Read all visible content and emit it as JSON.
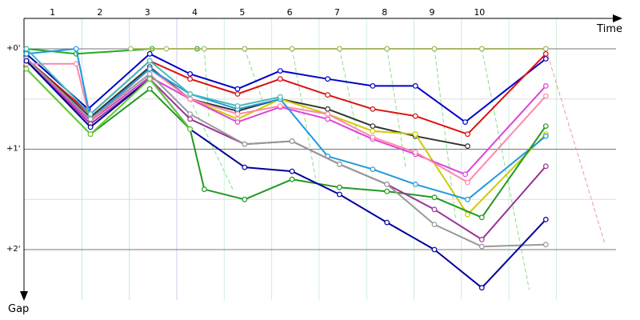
{
  "chart_data": {
    "type": "line",
    "title": "",
    "xlabel": "Time",
    "ylabel": "Gap",
    "lap_labels": [
      "1",
      "2",
      "3",
      "4",
      "5",
      "6",
      "7",
      "8",
      "9",
      "10"
    ],
    "y_tick_labels": [
      "+0'",
      "+1'",
      "+2'"
    ],
    "ylim": [
      -0.2,
      2.5
    ],
    "grid": true,
    "series": [
      {
        "color": "#22aa22",
        "values": [
          [
            0,
            0.0
          ],
          [
            1.05,
            0.05
          ],
          [
            2.65,
            0.0
          ],
          [
            3.6,
            0.0
          ],
          [
            4.6,
            0.0
          ],
          [
            5.6,
            0.0
          ],
          [
            6.6,
            0.0
          ],
          [
            7.6,
            0.0
          ],
          [
            8.6,
            0.0
          ],
          [
            9.6,
            0.0
          ],
          [
            10.95,
            0.0
          ]
        ]
      },
      {
        "color": "#aab866",
        "values": [
          [
            2.2,
            0.0
          ],
          [
            2.95,
            0.0
          ],
          [
            3.75,
            0.0
          ],
          [
            4.6,
            0.0
          ],
          [
            5.6,
            0.0
          ],
          [
            6.6,
            0.0
          ],
          [
            7.6,
            0.0
          ],
          [
            8.6,
            0.0
          ],
          [
            9.6,
            0.0
          ],
          [
            10.95,
            0.0
          ]
        ]
      },
      {
        "color": "#0000cc",
        "values": [
          [
            0,
            0.05
          ],
          [
            1.3,
            0.6
          ],
          [
            2.6,
            0.05
          ],
          [
            3.45,
            0.25
          ],
          [
            4.45,
            0.4
          ],
          [
            5.35,
            0.22
          ],
          [
            6.35,
            0.3
          ],
          [
            7.3,
            0.37
          ],
          [
            8.2,
            0.37
          ],
          [
            9.25,
            0.73
          ],
          [
            10.95,
            0.1
          ]
        ]
      },
      {
        "color": "#dd1111",
        "values": [
          [
            0,
            0.1
          ],
          [
            1.35,
            0.65
          ],
          [
            2.6,
            0.12
          ],
          [
            3.45,
            0.3
          ],
          [
            4.45,
            0.45
          ],
          [
            5.35,
            0.3
          ],
          [
            6.35,
            0.46
          ],
          [
            7.3,
            0.6
          ],
          [
            8.2,
            0.67
          ],
          [
            9.3,
            0.85
          ],
          [
            10.95,
            0.05
          ]
        ]
      },
      {
        "color": "#333333",
        "values": [
          [
            0,
            0.1
          ],
          [
            1.35,
            0.68
          ],
          [
            2.6,
            0.18
          ],
          [
            3.45,
            0.5
          ],
          [
            4.45,
            0.62
          ],
          [
            5.35,
            0.5
          ],
          [
            6.35,
            0.6
          ],
          [
            7.3,
            0.77
          ],
          [
            8.2,
            0.87
          ],
          [
            9.3,
            0.97
          ]
        ]
      },
      {
        "color": "#cccc00",
        "values": [
          [
            0,
            0.12
          ],
          [
            1.35,
            0.72
          ],
          [
            2.6,
            0.28
          ],
          [
            3.45,
            0.5
          ],
          [
            4.45,
            0.7
          ],
          [
            5.35,
            0.5
          ],
          [
            6.35,
            0.65
          ],
          [
            7.3,
            0.82
          ],
          [
            8.2,
            0.85
          ],
          [
            9.3,
            1.65
          ],
          [
            10.95,
            0.85
          ]
        ]
      },
      {
        "color": "#dd44dd",
        "values": [
          [
            0,
            0.12
          ],
          [
            1.35,
            0.72
          ],
          [
            2.6,
            0.28
          ],
          [
            3.45,
            0.5
          ],
          [
            4.45,
            0.73
          ],
          [
            5.35,
            0.58
          ],
          [
            6.35,
            0.7
          ],
          [
            7.3,
            0.9
          ],
          [
            8.2,
            1.05
          ],
          [
            9.25,
            1.25
          ],
          [
            10.95,
            0.37
          ]
        ]
      },
      {
        "color": "#ff88aa",
        "values": [
          [
            0,
            0.15
          ],
          [
            1.05,
            0.15
          ],
          [
            1.35,
            0.72
          ],
          [
            2.6,
            0.2
          ],
          [
            3.45,
            0.5
          ],
          [
            4.45,
            0.65
          ],
          [
            5.35,
            0.57
          ],
          [
            6.35,
            0.65
          ],
          [
            7.3,
            0.88
          ],
          [
            8.2,
            1.03
          ],
          [
            9.3,
            1.33
          ],
          [
            10.95,
            0.47
          ]
        ]
      },
      {
        "color": "#2299dd",
        "values": [
          [
            0,
            0.05
          ],
          [
            1.05,
            0.0
          ],
          [
            1.35,
            0.7
          ],
          [
            2.6,
            0.2
          ],
          [
            3.45,
            0.45
          ],
          [
            4.45,
            0.6
          ],
          [
            5.35,
            0.5
          ],
          [
            6.35,
            1.07
          ],
          [
            7.3,
            1.2
          ],
          [
            8.2,
            1.35
          ],
          [
            9.3,
            1.5
          ],
          [
            10.95,
            0.87
          ]
        ]
      },
      {
        "color": "#229922",
        "values": [
          [
            0,
            0.2
          ],
          [
            1.35,
            0.85
          ],
          [
            2.6,
            0.4
          ],
          [
            3.45,
            0.8
          ],
          [
            3.75,
            1.4
          ],
          [
            4.6,
            1.5
          ],
          [
            5.6,
            1.3
          ],
          [
            6.6,
            1.38
          ],
          [
            7.6,
            1.42
          ],
          [
            8.6,
            1.48
          ],
          [
            9.6,
            1.68
          ],
          [
            10.95,
            0.77
          ]
        ]
      },
      {
        "color": "#993399",
        "values": [
          [
            0,
            0.12
          ],
          [
            1.35,
            0.75
          ],
          [
            2.6,
            0.3
          ],
          [
            3.45,
            0.7
          ],
          [
            4.6,
            0.95
          ],
          [
            5.6,
            0.92
          ],
          [
            6.6,
            1.15
          ],
          [
            7.6,
            1.35
          ],
          [
            8.6,
            1.6
          ],
          [
            9.6,
            1.9
          ],
          [
            10.95,
            1.17
          ]
        ]
      },
      {
        "color": "#999999",
        "values": [
          [
            0,
            0.1
          ],
          [
            1.35,
            0.7
          ],
          [
            2.6,
            0.25
          ],
          [
            3.45,
            0.65
          ],
          [
            4.6,
            0.95
          ],
          [
            5.6,
            0.92
          ],
          [
            6.6,
            1.15
          ],
          [
            7.6,
            1.35
          ],
          [
            8.6,
            1.75
          ],
          [
            9.6,
            1.97
          ],
          [
            10.95,
            1.95
          ]
        ]
      },
      {
        "color": "#000099",
        "values": [
          [
            0,
            0.12
          ],
          [
            1.35,
            0.78
          ],
          [
            2.6,
            0.3
          ],
          [
            3.45,
            0.8
          ],
          [
            4.6,
            1.18
          ],
          [
            5.6,
            1.22
          ],
          [
            6.6,
            1.45
          ],
          [
            7.6,
            1.73
          ],
          [
            8.6,
            2.0
          ],
          [
            9.6,
            2.38
          ],
          [
            10.95,
            1.7
          ]
        ]
      },
      {
        "color": "#66cc33",
        "values": [
          [
            0,
            0.2
          ],
          [
            1.35,
            0.85
          ],
          [
            2.6,
            0.3
          ],
          [
            3.45,
            0.8
          ]
        ]
      },
      {
        "color": "#44bbbb",
        "values": [
          [
            0,
            0.0
          ],
          [
            1.35,
            0.65
          ],
          [
            2.6,
            0.12
          ],
          [
            3.45,
            0.45
          ],
          [
            4.45,
            0.57
          ],
          [
            5.35,
            0.48
          ]
        ]
      }
    ]
  }
}
